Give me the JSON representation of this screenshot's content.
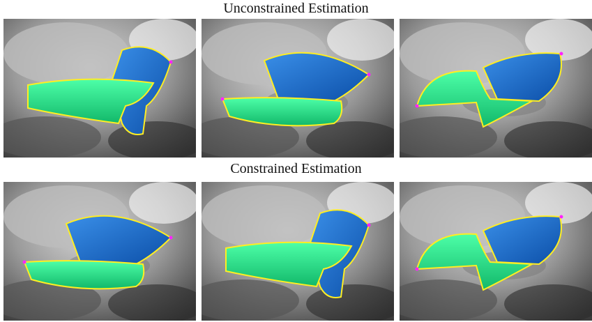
{
  "rows": [
    {
      "title": "Unconstrained Estimation"
    },
    {
      "title": "Constrained Estimation"
    }
  ]
}
